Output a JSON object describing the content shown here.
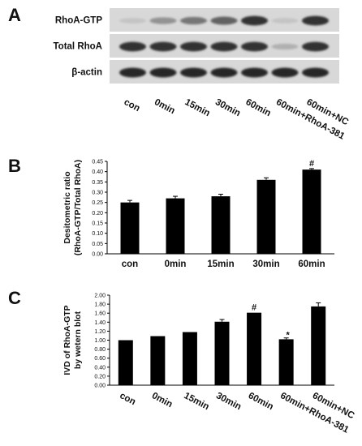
{
  "panels": {
    "a": "A",
    "b": "B",
    "c": "C"
  },
  "blot": {
    "rows": [
      "RhoA-GTP",
      "Total RhoA",
      "β-actin"
    ],
    "lanes": [
      "con",
      "0min",
      "15min",
      "30min",
      "60min",
      "60min+RhoA-381",
      "60min+NC"
    ],
    "band_intensity": [
      [
        0.1,
        0.35,
        0.5,
        0.6,
        0.85,
        0.1,
        0.85
      ],
      [
        0.85,
        0.85,
        0.85,
        0.85,
        0.85,
        0.2,
        0.85
      ],
      [
        0.9,
        0.9,
        0.9,
        0.9,
        0.9,
        0.9,
        0.9
      ]
    ]
  },
  "chart_data": [
    {
      "type": "bar",
      "ylabel": [
        "Desitometric ratio",
        "(RhoA-GTP/Total RhoA)"
      ],
      "xlabel": "",
      "title": "",
      "categories": [
        "con",
        "0min",
        "15min",
        "30min",
        "60min"
      ],
      "values": [
        0.25,
        0.27,
        0.28,
        0.36,
        0.41
      ],
      "errors": [
        0.01,
        0.01,
        0.01,
        0.01,
        0.005
      ],
      "annotations": [
        "",
        "",
        "",
        "",
        "#"
      ],
      "ylim": [
        0,
        0.45
      ],
      "yticks": [
        "0.00",
        "0.05",
        "0.10",
        "0.15",
        "0.20",
        "0.25",
        "0.30",
        "0.35",
        "0.40",
        "0.45"
      ],
      "grid": false,
      "bar_color": "#000000"
    },
    {
      "type": "bar",
      "ylabel": [
        "IVD of RhoA-GTP",
        "by wetern blot"
      ],
      "xlabel": "",
      "title": "",
      "categories": [
        "con",
        "0min",
        "15min",
        "30min",
        "60min",
        "60min+RhoA-381",
        "60min+NC"
      ],
      "values": [
        1.0,
        1.09,
        1.18,
        1.41,
        1.61,
        1.02,
        1.75
      ],
      "errors": [
        0.0,
        0.0,
        0.0,
        0.05,
        0.0,
        0.03,
        0.08
      ],
      "annotations": [
        "",
        "",
        "",
        "",
        "#",
        "*",
        ""
      ],
      "ylim": [
        0,
        2.0
      ],
      "yticks": [
        "0.00",
        "0.20",
        "0.40",
        "0.60",
        "0.80",
        "1.00",
        "1.20",
        "1.40",
        "1.60",
        "1.80",
        "2.00"
      ],
      "grid": false,
      "bar_color": "#000000"
    }
  ]
}
